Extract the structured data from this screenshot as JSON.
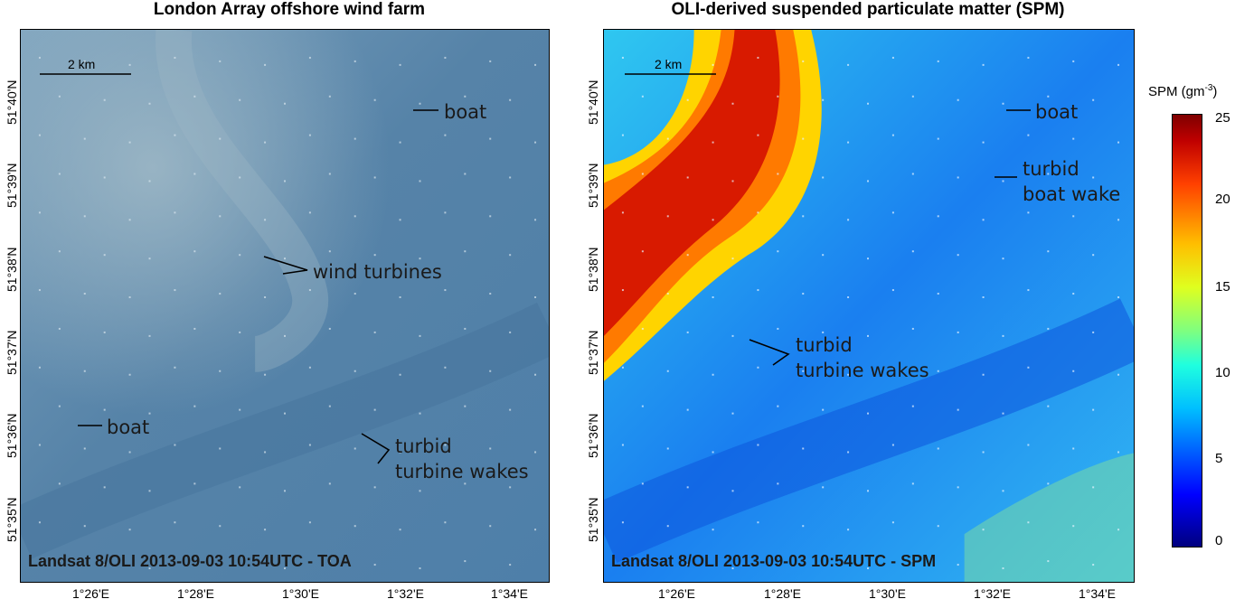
{
  "left_panel": {
    "title": "London Array offshore wind farm",
    "caption": "Landsat 8/OLI 2013-09-03 10:54UTC - TOA",
    "scale_label": "2 km",
    "annotations": {
      "boat_top": "boat",
      "wind_turbines": "wind turbines",
      "boat_bottom": "boat",
      "turbid_line1": "turbid",
      "turbid_line2": "turbine wakes"
    }
  },
  "right_panel": {
    "title": "OLI-derived suspended particulate matter (SPM)",
    "caption": "Landsat 8/OLI 2013-09-03 10:54UTC - SPM",
    "scale_label": "2 km",
    "annotations": {
      "boat": "boat",
      "boat_wake_line1": "turbid",
      "boat_wake_line2": "boat wake",
      "turbine_wakes_line1": "turbid",
      "turbine_wakes_line2": "turbine wakes"
    }
  },
  "axes": {
    "y_ticks": [
      "51°40'N",
      "51°39'N",
      "51°38'N",
      "51°37'N",
      "51°36'N",
      "51°35'N"
    ],
    "x_ticks": [
      "1°26'E",
      "1°28'E",
      "1°30'E",
      "1°32'E",
      "1°34'E"
    ]
  },
  "colorbar": {
    "unit_label": "SPM (gm",
    "unit_exponent": "-3",
    "unit_close": ")",
    "ticks": [
      "25",
      "20",
      "15",
      "10",
      "5",
      "0"
    ],
    "range": [
      0,
      25
    ],
    "colormap": "jet"
  }
}
